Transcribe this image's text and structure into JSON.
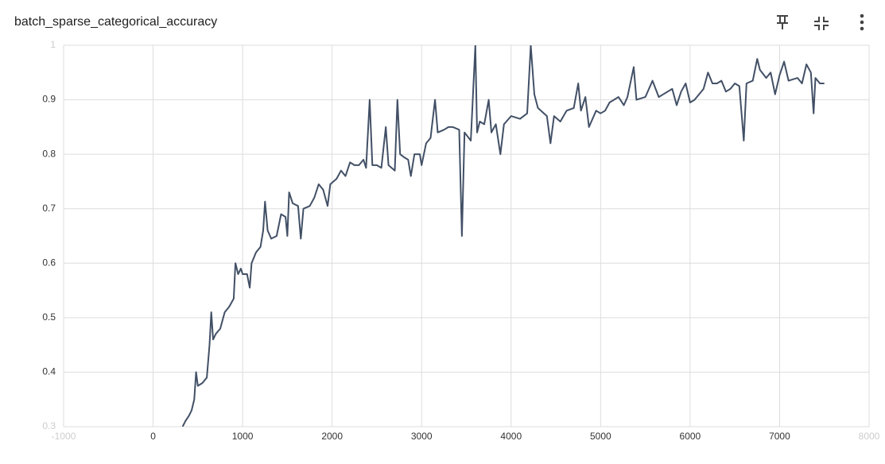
{
  "chart_data": {
    "type": "line",
    "title": "batch_sparse_categorical_accuracy",
    "color": "#425066",
    "grid": true,
    "x": [
      330,
      360,
      400,
      430,
      460,
      480,
      500,
      550,
      600,
      630,
      650,
      670,
      700,
      750,
      800,
      850,
      900,
      920,
      950,
      980,
      1000,
      1050,
      1080,
      1100,
      1150,
      1200,
      1230,
      1250,
      1280,
      1320,
      1380,
      1430,
      1480,
      1500,
      1520,
      1560,
      1620,
      1650,
      1680,
      1750,
      1800,
      1850,
      1900,
      1950,
      1980,
      2050,
      2100,
      2150,
      2200,
      2250,
      2300,
      2350,
      2380,
      2420,
      2450,
      2500,
      2550,
      2600,
      2630,
      2700,
      2730,
      2760,
      2800,
      2850,
      2880,
      2920,
      2980,
      3000,
      3050,
      3100,
      3150,
      3180,
      3250,
      3300,
      3350,
      3420,
      3450,
      3480,
      3550,
      3600,
      3620,
      3650,
      3700,
      3750,
      3780,
      3830,
      3880,
      3920,
      4000,
      4100,
      4180,
      4220,
      4260,
      4300,
      4400,
      4440,
      4480,
      4550,
      4620,
      4700,
      4750,
      4780,
      4830,
      4870,
      4950,
      5000,
      5050,
      5100,
      5200,
      5260,
      5300,
      5370,
      5400,
      5500,
      5580,
      5650,
      5700,
      5800,
      5850,
      5900,
      5950,
      6000,
      6050,
      6150,
      6200,
      6250,
      6300,
      6350,
      6400,
      6450,
      6500,
      6550,
      6600,
      6630,
      6700,
      6750,
      6780,
      6850,
      6900,
      6950,
      7000,
      7050,
      7100,
      7200,
      7250,
      7300,
      7350,
      7380,
      7400,
      7450,
      7500
    ],
    "values": [
      0.3,
      0.31,
      0.32,
      0.33,
      0.35,
      0.4,
      0.375,
      0.38,
      0.39,
      0.45,
      0.51,
      0.46,
      0.47,
      0.48,
      0.51,
      0.52,
      0.535,
      0.6,
      0.58,
      0.59,
      0.58,
      0.58,
      0.555,
      0.6,
      0.62,
      0.63,
      0.66,
      0.713,
      0.66,
      0.645,
      0.65,
      0.69,
      0.685,
      0.65,
      0.73,
      0.71,
      0.705,
      0.645,
      0.7,
      0.705,
      0.72,
      0.745,
      0.735,
      0.705,
      0.745,
      0.755,
      0.77,
      0.76,
      0.785,
      0.78,
      0.78,
      0.79,
      0.775,
      0.9,
      0.78,
      0.78,
      0.775,
      0.85,
      0.78,
      0.77,
      0.9,
      0.8,
      0.795,
      0.79,
      0.76,
      0.8,
      0.8,
      0.78,
      0.82,
      0.83,
      0.9,
      0.84,
      0.845,
      0.85,
      0.85,
      0.845,
      0.65,
      0.84,
      0.825,
      1.0,
      0.84,
      0.86,
      0.855,
      0.9,
      0.84,
      0.855,
      0.8,
      0.855,
      0.87,
      0.865,
      0.875,
      1.0,
      0.91,
      0.885,
      0.87,
      0.82,
      0.87,
      0.86,
      0.88,
      0.885,
      0.93,
      0.88,
      0.905,
      0.85,
      0.88,
      0.875,
      0.88,
      0.895,
      0.905,
      0.89,
      0.905,
      0.96,
      0.9,
      0.905,
      0.935,
      0.905,
      0.91,
      0.92,
      0.89,
      0.915,
      0.93,
      0.895,
      0.9,
      0.92,
      0.95,
      0.93,
      0.93,
      0.935,
      0.915,
      0.92,
      0.93,
      0.925,
      0.825,
      0.93,
      0.935,
      0.975,
      0.955,
      0.94,
      0.95,
      0.91,
      0.945,
      0.97,
      0.935,
      0.94,
      0.93,
      0.965,
      0.95,
      0.875,
      0.94,
      0.93,
      0.93
    ],
    "xlim": [
      -1000,
      8000
    ],
    "xticks": [
      -1000,
      0,
      1000,
      2000,
      3000,
      4000,
      5000,
      6000,
      7000,
      8000
    ],
    "ylim": [
      0.3,
      1
    ],
    "yticks": [
      0.3,
      0.4,
      0.5,
      0.6,
      0.7,
      0.8,
      0.9,
      1
    ]
  }
}
